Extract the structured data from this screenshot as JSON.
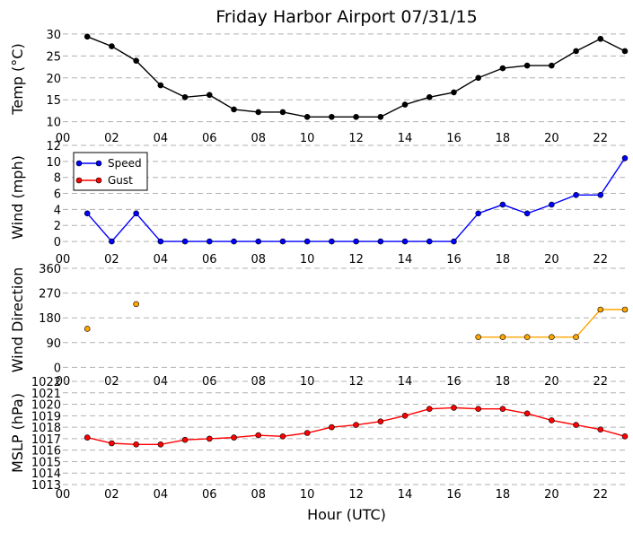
{
  "chart_data": {
    "title": "Friday Harbor Airport 07/31/15",
    "xlabel": "Hour (UTC)",
    "x_tick_labels": [
      "00",
      "02",
      "04",
      "06",
      "08",
      "10",
      "12",
      "14",
      "16",
      "18",
      "20",
      "22"
    ],
    "xlim": [
      0,
      23
    ],
    "grid": "horizontal dashed",
    "panels": [
      {
        "id": "temp",
        "type": "line",
        "ylabel": "Temp ($^\\circ$C)",
        "ylabel_display": "Temp (°C)",
        "ylim": [
          8.5,
          31
        ],
        "yticks": [
          10,
          15,
          20,
          25,
          30
        ],
        "series": [
          {
            "color": "#000000",
            "x": [
              1,
              2,
              3,
              4,
              5,
              6,
              7,
              8,
              9,
              10,
              11,
              12,
              13,
              14,
              15,
              16,
              17,
              18,
              19,
              20,
              21,
              22,
              23
            ],
            "y": [
              29.4,
              27.2,
              23.9,
              18.3,
              15.6,
              16.1,
              12.8,
              12.2,
              12.2,
              11.1,
              11.1,
              11.1,
              11.1,
              13.9,
              15.6,
              16.7,
              20.0,
              22.2,
              22.8,
              22.8,
              26.1,
              28.9,
              26.1
            ]
          }
        ]
      },
      {
        "id": "wind",
        "type": "line",
        "ylabel": "Wind (mph)",
        "ylim": [
          -1,
          12
        ],
        "yticks": [
          0,
          2,
          4,
          6,
          8,
          10,
          12
        ],
        "legend_position": "upper-left",
        "series": [
          {
            "name": "Speed",
            "color": "#0000ff",
            "x": [
              1,
              2,
              3,
              4,
              5,
              6,
              7,
              8,
              9,
              10,
              11,
              12,
              13,
              14,
              15,
              16,
              17,
              18,
              19,
              20,
              21,
              22,
              23
            ],
            "y": [
              3.5,
              0,
              3.5,
              0,
              0,
              0,
              0,
              0,
              0,
              0,
              0,
              0,
              0,
              0,
              0,
              0,
              3.5,
              4.6,
              3.5,
              4.6,
              5.8,
              5.8,
              10.4
            ]
          },
          {
            "name": "Gust",
            "color": "#ff0000",
            "x": [],
            "y": []
          }
        ]
      },
      {
        "id": "direction",
        "type": "line",
        "ylabel": "Wind Direction",
        "ylim": [
          -15,
          360
        ],
        "yticks": [
          0,
          90,
          180,
          270,
          360
        ],
        "series": [
          {
            "color": "#ffa500",
            "x": [
              1,
              3,
              17,
              18,
              19,
              20,
              21,
              22,
              23
            ],
            "y": [
              140,
              230,
              110,
              110,
              110,
              110,
              110,
              210,
              210
            ],
            "connect_from_index": 2
          }
        ]
      },
      {
        "id": "mslp",
        "type": "line",
        "ylabel": "MSLP (hPa)",
        "ylim": [
          1013,
          1022
        ],
        "yticks": [
          1013,
          1014,
          1015,
          1016,
          1017,
          1018,
          1019,
          1020,
          1021,
          1022
        ],
        "series": [
          {
            "color": "#ff0000",
            "x": [
              1,
              2,
              3,
              4,
              5,
              6,
              7,
              8,
              9,
              10,
              11,
              12,
              13,
              14,
              15,
              16,
              17,
              18,
              19,
              20,
              21,
              22,
              23
            ],
            "y": [
              1017.1,
              1016.6,
              1016.5,
              1016.5,
              1016.9,
              1017.0,
              1017.1,
              1017.3,
              1017.2,
              1017.5,
              1018.0,
              1018.2,
              1018.5,
              1019.0,
              1019.6,
              1019.7,
              1019.6,
              1019.6,
              1019.2,
              1018.6,
              1018.2,
              1017.8,
              1017.2
            ]
          }
        ]
      }
    ]
  }
}
